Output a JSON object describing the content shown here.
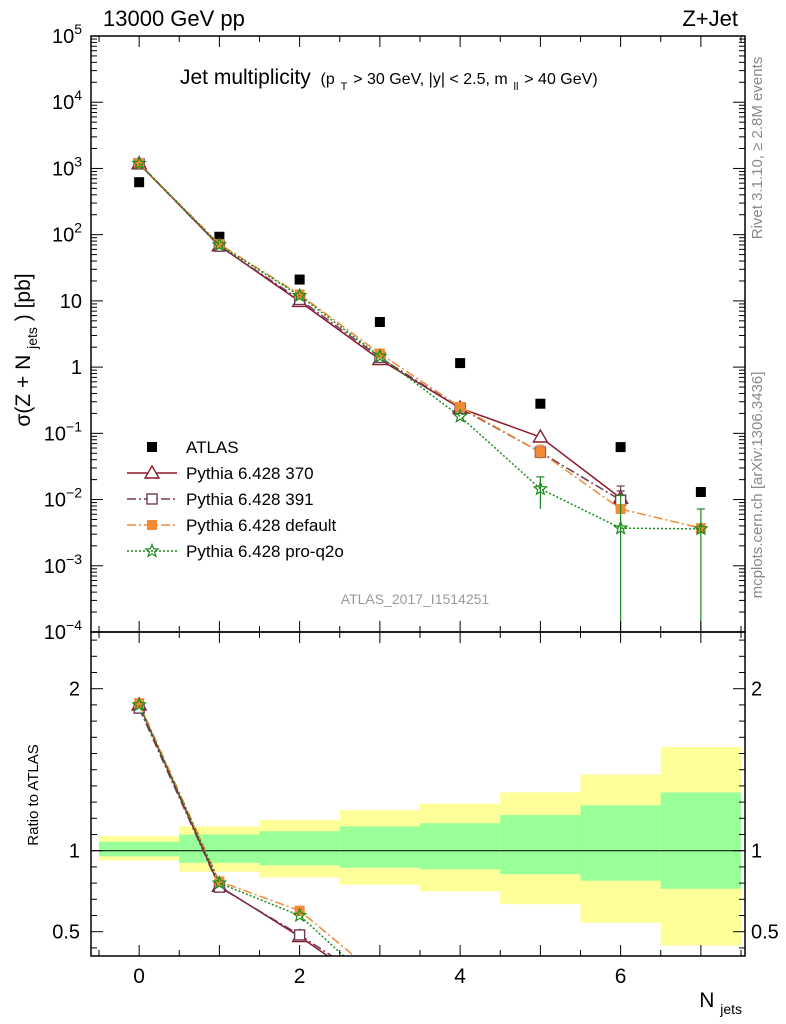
{
  "header": {
    "left": "13000 GeV pp",
    "right": "Z+Jet"
  },
  "title": {
    "main": "Jet multiplicity",
    "cut_open": "(p",
    "cut_pt_sub": "T",
    "cut_mid": " > 30 GeV, |y| < 2.5, m",
    "cut_m_sub": "ll",
    "cut_close": " > 40 GeV)"
  },
  "side_labels": {
    "rivet": "Rivet 3.1.10, ≥ 2.8M events",
    "mcplots": "mcplots.cern.ch [arXiv:1306.3436]"
  },
  "analysis_id": "ATLAS_2017_I1514251",
  "colors": {
    "atlas": "#000000",
    "p370": "#8b1a2b",
    "p391": "#6e3a55",
    "pdefault": "#f28a36",
    "pq2o": "#1a8a1a",
    "band_inner": "#99ff99",
    "band_outer": "#ffff99"
  },
  "chart_data": [
    {
      "type": "scatter",
      "panel": "main",
      "yscale": "log",
      "ylabel_pre": "σ(Z + N",
      "ylabel_sub": "jets",
      "ylabel_post": ") [pb]",
      "xlim": [
        -0.6,
        7.55
      ],
      "ylim": [
        0.0001,
        100000
      ],
      "y_tick_labels": [
        {
          "v": 0.0001,
          "base": "10",
          "exp": "−4"
        },
        {
          "v": 0.001,
          "base": "10",
          "exp": "−3"
        },
        {
          "v": 0.01,
          "base": "10",
          "exp": "−2"
        },
        {
          "v": 0.1,
          "base": "10",
          "exp": "−1"
        },
        {
          "v": 1,
          "base": "1",
          "exp": ""
        },
        {
          "v": 10,
          "base": "10",
          "exp": ""
        },
        {
          "v": 100,
          "base": "10",
          "exp": "2"
        },
        {
          "v": 1000,
          "base": "10",
          "exp": "3"
        },
        {
          "v": 10000,
          "base": "10",
          "exp": "4"
        },
        {
          "v": 100000,
          "base": "10",
          "exp": "5"
        }
      ],
      "legend_position": "bottom-left",
      "series": [
        {
          "key": "atlas",
          "name": "ATLAS",
          "marker": "square",
          "line": "none",
          "x": [
            0,
            1,
            2,
            3,
            4,
            5,
            6,
            7
          ],
          "y": [
            620,
            93,
            21,
            4.8,
            1.15,
            0.28,
            0.062,
            0.013
          ]
        },
        {
          "key": "p370",
          "name": "Pythia 6.428 370",
          "marker": "triangle-open",
          "line": "solid",
          "x": [
            0,
            1,
            2,
            3,
            4,
            5,
            6
          ],
          "y": [
            1180,
            68,
            9.8,
            1.3,
            0.24,
            0.088,
            0.0105
          ],
          "err": [
            [
              6,
              0.008,
              0.0135
            ]
          ]
        },
        {
          "key": "p391",
          "name": "Pythia 6.428 391",
          "marker": "square-open",
          "line": "dashdot",
          "x": [
            0,
            1,
            2,
            3,
            4,
            5,
            6
          ],
          "y": [
            1170,
            67,
            10.5,
            1.4,
            0.24,
            0.052,
            0.0098
          ],
          "err": [
            [
              6,
              0.0065,
              0.016
            ]
          ]
        },
        {
          "key": "pdefault",
          "name": "Pythia 6.428 default",
          "marker": "square",
          "line": "dashdot",
          "x": [
            0,
            1,
            2,
            3,
            4,
            5,
            6,
            7
          ],
          "y": [
            1190,
            72,
            12.5,
            1.6,
            0.25,
            0.052,
            0.0072,
            0.0037
          ],
          "err": [
            [
              5,
              0.041,
              0.066
            ]
          ]
        },
        {
          "key": "pq2o",
          "name": "Pythia 6.428 pro-q2o",
          "marker": "star",
          "line": "dotted",
          "x": [
            0,
            1,
            2,
            3,
            4,
            5,
            6,
            7
          ],
          "y": [
            1185,
            70,
            12,
            1.45,
            0.18,
            0.0145,
            0.0037,
            0.0036
          ],
          "err": [
            [
              5,
              0.0072,
              0.022
            ],
            [
              6,
              5e-05,
              0.0115
            ],
            [
              7,
              5e-05,
              0.0072
            ]
          ]
        }
      ]
    },
    {
      "type": "line",
      "panel": "ratio",
      "ylabel": "Ratio to ATLAS",
      "xlabel_pre": "N",
      "xlabel_sub": "jets",
      "xlim": [
        -0.6,
        7.55
      ],
      "ylim": [
        0.35,
        2.35
      ],
      "x_tick_labels": [
        0,
        2,
        4,
        6
      ],
      "y_tick_labels": [
        "0.5",
        "1",
        "2"
      ],
      "y_tick_values": [
        0.5,
        1,
        2
      ],
      "bands": [
        {
          "x0": -0.5,
          "x1": 0.5,
          "inner": [
            0.965,
            1.055
          ],
          "outer": [
            0.94,
            1.09
          ]
        },
        {
          "x0": 0.5,
          "x1": 1.5,
          "inner": [
            0.925,
            1.1
          ],
          "outer": [
            0.87,
            1.15
          ]
        },
        {
          "x0": 1.5,
          "x1": 2.5,
          "inner": [
            0.91,
            1.12
          ],
          "outer": [
            0.835,
            1.19
          ]
        },
        {
          "x0": 2.5,
          "x1": 3.5,
          "inner": [
            0.895,
            1.15
          ],
          "outer": [
            0.79,
            1.25
          ]
        },
        {
          "x0": 3.5,
          "x1": 4.5,
          "inner": [
            0.885,
            1.17
          ],
          "outer": [
            0.75,
            1.29
          ]
        },
        {
          "x0": 4.5,
          "x1": 5.5,
          "inner": [
            0.855,
            1.22
          ],
          "outer": [
            0.67,
            1.36
          ]
        },
        {
          "x0": 5.5,
          "x1": 6.5,
          "inner": [
            0.815,
            1.28
          ],
          "outer": [
            0.555,
            1.47
          ]
        },
        {
          "x0": 6.5,
          "x1": 7.5,
          "inner": [
            0.765,
            1.36
          ],
          "outer": [
            0.415,
            1.64
          ]
        }
      ],
      "series": [
        {
          "key": "p370",
          "x": [
            0,
            1,
            2,
            2.35
          ],
          "y": [
            1.9,
            0.78,
            0.47,
            0.35
          ]
        },
        {
          "key": "p391",
          "x": [
            0,
            1,
            2,
            2.4
          ],
          "y": [
            1.88,
            0.775,
            0.48,
            0.35
          ]
        },
        {
          "key": "pdefault",
          "x": [
            0,
            1,
            2,
            2.68
          ],
          "y": [
            1.91,
            0.81,
            0.63,
            0.35
          ]
        },
        {
          "key": "pq2o",
          "x": [
            0,
            1,
            2,
            2.55
          ],
          "y": [
            1.9,
            0.8,
            0.6,
            0.35
          ]
        }
      ]
    }
  ]
}
